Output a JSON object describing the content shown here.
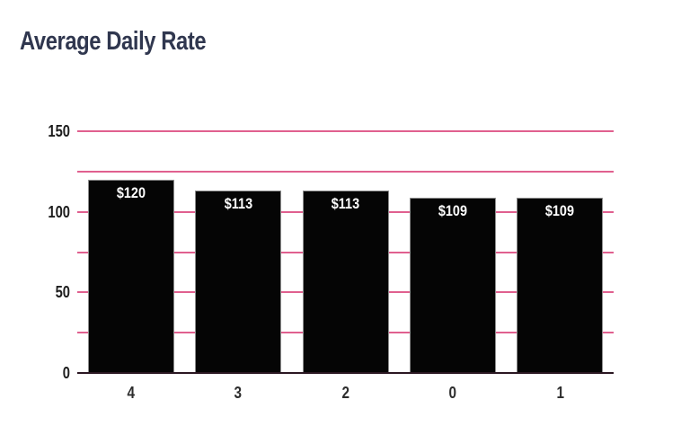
{
  "title": "Average Daily Rate",
  "colors": {
    "title": "#30374f",
    "gridline": "#e0608f",
    "baseline": "#2b1722",
    "bar_fill": "#050505",
    "bar_label": "#ffffff",
    "axis_label": "#1d1d1d"
  },
  "chart_data": {
    "type": "bar",
    "title": "Average Daily Rate",
    "categories": [
      "4",
      "3",
      "2",
      "0",
      "1"
    ],
    "values": [
      120,
      113,
      113,
      109,
      109
    ],
    "bar_labels": [
      "$120",
      "$113",
      "$113",
      "$109",
      "$109"
    ],
    "xlabel": "",
    "ylabel": "",
    "ylim": [
      0,
      150
    ],
    "yticks": [
      "0",
      "50",
      "100",
      "150"
    ],
    "gridline_values": [
      25,
      50,
      75,
      100,
      125,
      150
    ],
    "grid": true,
    "legend_position": "none",
    "bar_label_position": "inside-top"
  }
}
